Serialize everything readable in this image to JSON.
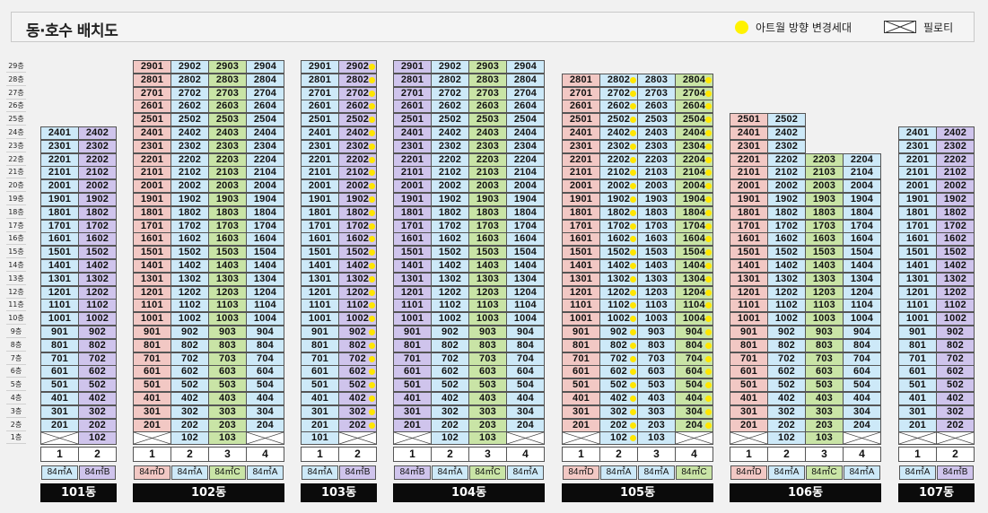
{
  "header": {
    "title": "동·호수 배치도",
    "legend_dot_label": "아트월 방향 변경세대",
    "legend_pilotis_label": "필로티"
  },
  "colors": {
    "blue": "#cde9f8",
    "purple": "#cfc4ec",
    "pink": "#f2c8c4",
    "green": "#c9e4a6",
    "dot": "#ffe600"
  },
  "floors": [
    "29층",
    "28층",
    "27층",
    "26층",
    "25층",
    "24층",
    "23층",
    "22층",
    "21층",
    "20층",
    "19층",
    "18층",
    "17층",
    "16층",
    "15층",
    "14층",
    "13층",
    "12층",
    "11층",
    "10층",
    "9층",
    "8층",
    "7층",
    "6층",
    "5층",
    "4층",
    "3층",
    "2층",
    "1층"
  ],
  "buildings": [
    {
      "name": "101동",
      "top_floor": 24,
      "lines": [
        {
          "num": "1",
          "type": "84㎡A",
          "color": "blue",
          "dot": false,
          "ground": "pilotis"
        },
        {
          "num": "2",
          "type": "84㎡B",
          "color": "purple",
          "dot": false,
          "ground": "unit"
        }
      ]
    },
    {
      "name": "102동",
      "top_floor": 29,
      "lines": [
        {
          "num": "1",
          "type": "84㎡D",
          "color": "pink",
          "dot": false,
          "ground": "pilotis"
        },
        {
          "num": "2",
          "type": "84㎡A",
          "color": "blue",
          "dot": false,
          "ground": "unit"
        },
        {
          "num": "3",
          "type": "84㎡C",
          "color": "green",
          "dot": false,
          "ground": "unit"
        },
        {
          "num": "4",
          "type": "84㎡A",
          "color": "blue",
          "dot": false,
          "ground": "pilotis"
        }
      ]
    },
    {
      "name": "103동",
      "top_floor": 29,
      "lines": [
        {
          "num": "1",
          "type": "84㎡A",
          "color": "blue",
          "dot": false,
          "ground": "unit"
        },
        {
          "num": "2",
          "type": "84㎡B",
          "color": "purple",
          "dot": true,
          "ground": "pilotis"
        }
      ]
    },
    {
      "name": "104동",
      "top_floor": 29,
      "lines": [
        {
          "num": "1",
          "type": "84㎡B",
          "color": "purple",
          "dot": false,
          "ground": "pilotis"
        },
        {
          "num": "2",
          "type": "84㎡A",
          "color": "blue",
          "dot": false,
          "ground": "unit"
        },
        {
          "num": "3",
          "type": "84㎡C",
          "color": "green",
          "dot": false,
          "ground": "unit"
        },
        {
          "num": "4",
          "type": "84㎡A",
          "color": "blue",
          "dot": false,
          "ground": "pilotis"
        }
      ]
    },
    {
      "name": "105동",
      "top_floor": 28,
      "lines": [
        {
          "num": "1",
          "type": "84㎡D",
          "color": "pink",
          "dot": false,
          "ground": "pilotis"
        },
        {
          "num": "2",
          "type": "84㎡A",
          "color": "blue",
          "dot": true,
          "ground": "unit"
        },
        {
          "num": "3",
          "type": "84㎡A",
          "color": "blue",
          "dot": false,
          "ground": "unit"
        },
        {
          "num": "4",
          "type": "84㎡C",
          "color": "green",
          "dot": true,
          "ground": "pilotis"
        }
      ]
    },
    {
      "name": "106동",
      "top_floor": 25,
      "lines": [
        {
          "num": "1",
          "type": "84㎡D",
          "color": "pink",
          "dot": false,
          "ground": "pilotis"
        },
        {
          "num": "2",
          "type": "84㎡A",
          "color": "blue",
          "dot": false,
          "ground": "unit"
        },
        {
          "num": "3",
          "type": "84㎡C",
          "color": "green",
          "dot": false,
          "ground": "unit",
          "top": 22
        },
        {
          "num": "4",
          "type": "84㎡A",
          "color": "blue",
          "dot": false,
          "ground": "pilotis",
          "top": 22
        }
      ]
    },
    {
      "name": "107동",
      "top_floor": 24,
      "lines": [
        {
          "num": "1",
          "type": "84㎡A",
          "color": "blue",
          "dot": false,
          "ground": "pilotis"
        },
        {
          "num": "2",
          "type": "84㎡B",
          "color": "purple",
          "dot": false,
          "ground": "pilotis"
        }
      ]
    }
  ]
}
